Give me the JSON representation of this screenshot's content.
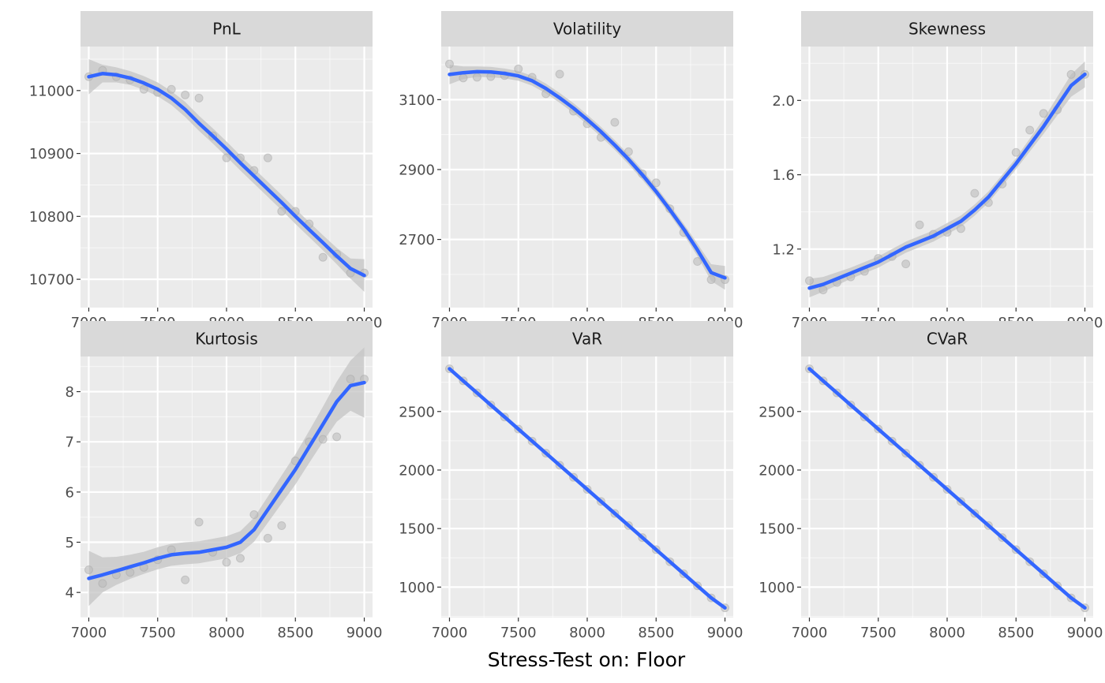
{
  "chart_data": {
    "type": "scatter",
    "xlabel": "Stress-Test on: Floor",
    "ylabel": "",
    "title": "",
    "x": [
      7000,
      7100,
      7200,
      7300,
      7400,
      7500,
      7600,
      7700,
      7800,
      7900,
      8000,
      8100,
      8200,
      8300,
      8400,
      8500,
      8600,
      8700,
      8800,
      8900,
      9000
    ],
    "x_ticks": [
      7000,
      7500,
      8000,
      8500,
      9000
    ],
    "xlim": [
      6940,
      9060
    ],
    "grid": true,
    "smoothing": "loess",
    "colors": {
      "panel_bg": "#ebebeb",
      "strip_bg": "#d9d9d9",
      "grid_major": "#ffffff",
      "point": "#bdbdbd",
      "fit_line": "#3366ff",
      "ribbon": "#c4c4c4",
      "tick_text": "#4d4d4d"
    },
    "panels": [
      {
        "name": "PnL",
        "ylim": [
          10655,
          11070
        ],
        "y_ticks": [
          10700,
          10800,
          10900,
          11000
        ],
        "tick_labels": [
          "10700",
          "10800",
          "10900",
          "11000"
        ],
        "points": [
          11022,
          11032,
          11022,
          11017,
          11002,
          10997,
          11002,
          10993,
          10988,
          10928,
          10893,
          10893,
          10873,
          10893,
          10808,
          10808,
          10788,
          10735,
          10740,
          10710,
          10710
        ],
        "fit": [
          11022,
          11027,
          11025,
          11020,
          11012,
          11002,
          10988,
          10970,
          10948,
          10928,
          10907,
          10885,
          10864,
          10843,
          10822,
          10800,
          10779,
          10758,
          10737,
          10717,
          10706
        ],
        "ribbon": [
          28,
          14,
          12,
          11,
          11,
          11,
          11,
          12,
          12,
          12,
          12,
          12,
          12,
          12,
          12,
          12,
          12,
          12,
          13,
          16,
          26
        ]
      },
      {
        "name": "Volatility",
        "ylim": [
          2505,
          3252
        ],
        "y_ticks": [
          2700,
          2900,
          3100
        ],
        "tick_labels": [
          "2700",
          "2900",
          "3100"
        ],
        "points": [
          3202,
          3162,
          3164,
          3166,
          3169,
          3188,
          3164,
          3117,
          3173,
          3067,
          3031,
          2992,
          3035,
          2951,
          2888,
          2862,
          2788,
          2720,
          2637,
          2585,
          2585
        ],
        "fit": [
          3172,
          3177,
          3180,
          3179,
          3175,
          3168,
          3154,
          3132,
          3105,
          3076,
          3043,
          3008,
          2970,
          2929,
          2885,
          2837,
          2785,
          2730,
          2670,
          2605,
          2590
        ],
        "ribbon": [
          28,
          18,
          15,
          15,
          14,
          14,
          14,
          14,
          14,
          14,
          14,
          14,
          14,
          14,
          14,
          14,
          14,
          15,
          18,
          24,
          34
        ]
      },
      {
        "name": "Skewness",
        "ylim": [
          0.885,
          2.29
        ],
        "y_ticks": [
          1.2,
          1.6,
          2.0
        ],
        "tick_labels": [
          "1.2",
          "1.6",
          "2.0"
        ],
        "points": [
          1.03,
          0.98,
          1.02,
          1.05,
          1.08,
          1.15,
          1.16,
          1.12,
          1.33,
          1.28,
          1.29,
          1.31,
          1.5,
          1.45,
          1.55,
          1.72,
          1.84,
          1.93,
          1.95,
          2.14,
          2.14
        ],
        "fit": [
          0.99,
          1.01,
          1.04,
          1.07,
          1.1,
          1.13,
          1.17,
          1.21,
          1.24,
          1.27,
          1.31,
          1.35,
          1.41,
          1.48,
          1.57,
          1.66,
          1.76,
          1.86,
          1.97,
          2.08,
          2.14
        ],
        "ribbon": [
          0.05,
          0.04,
          0.035,
          0.03,
          0.03,
          0.03,
          0.03,
          0.03,
          0.03,
          0.03,
          0.03,
          0.03,
          0.03,
          0.03,
          0.03,
          0.03,
          0.035,
          0.04,
          0.05,
          0.06,
          0.07
        ]
      },
      {
        "name": "Kurtosis",
        "ylim": [
          3.5,
          8.7
        ],
        "y_ticks": [
          4,
          5,
          6,
          7,
          8
        ],
        "tick_labels": [
          "4",
          "5",
          "6",
          "7",
          "8"
        ],
        "points": [
          4.45,
          4.18,
          4.35,
          4.4,
          4.5,
          4.65,
          4.85,
          4.25,
          5.4,
          4.8,
          4.6,
          4.68,
          5.55,
          5.08,
          5.33,
          6.62,
          7.0,
          7.05,
          7.1,
          8.25,
          8.25
        ],
        "fit": [
          4.28,
          4.35,
          4.43,
          4.51,
          4.59,
          4.68,
          4.75,
          4.78,
          4.8,
          4.85,
          4.9,
          5.0,
          5.25,
          5.65,
          6.05,
          6.45,
          6.9,
          7.35,
          7.8,
          8.12,
          8.18
        ],
        "ribbon": [
          0.55,
          0.35,
          0.28,
          0.24,
          0.22,
          0.22,
          0.22,
          0.22,
          0.22,
          0.22,
          0.22,
          0.22,
          0.24,
          0.26,
          0.28,
          0.3,
          0.32,
          0.35,
          0.4,
          0.5,
          0.7
        ]
      },
      {
        "name": "VaR",
        "ylim": [
          740,
          2970
        ],
        "y_ticks": [
          1000,
          1500,
          2000,
          2500
        ],
        "tick_labels": [
          "1000",
          "1500",
          "2000",
          "2500"
        ],
        "points": [
          2865,
          2762,
          2659,
          2556,
          2453,
          2350,
          2247,
          2144,
          2041,
          1938,
          1835,
          1732,
          1629,
          1526,
          1423,
          1320,
          1217,
          1114,
          1011,
          908,
          823
        ],
        "fit": [
          2865,
          2762,
          2659,
          2556,
          2453,
          2350,
          2247,
          2144,
          2041,
          1938,
          1835,
          1732,
          1629,
          1526,
          1423,
          1320,
          1217,
          1114,
          1011,
          908,
          823
        ],
        "ribbon": [
          8,
          6,
          5,
          5,
          5,
          5,
          5,
          5,
          5,
          5,
          5,
          5,
          5,
          5,
          5,
          5,
          5,
          5,
          5,
          6,
          8
        ]
      },
      {
        "name": "CVaR",
        "ylim": [
          740,
          2970
        ],
        "y_ticks": [
          1000,
          1500,
          2000,
          2500
        ],
        "tick_labels": [
          "1000",
          "1500",
          "2000",
          "2500"
        ],
        "points": [
          2865,
          2762,
          2659,
          2556,
          2453,
          2350,
          2247,
          2144,
          2041,
          1938,
          1835,
          1732,
          1629,
          1526,
          1423,
          1320,
          1217,
          1114,
          1011,
          908,
          823
        ],
        "fit": [
          2865,
          2762,
          2659,
          2556,
          2453,
          2350,
          2247,
          2144,
          2041,
          1938,
          1835,
          1732,
          1629,
          1526,
          1423,
          1320,
          1217,
          1114,
          1011,
          908,
          823
        ],
        "ribbon": [
          8,
          6,
          5,
          5,
          5,
          5,
          5,
          5,
          5,
          5,
          5,
          5,
          5,
          5,
          5,
          5,
          5,
          5,
          5,
          6,
          8
        ]
      }
    ]
  }
}
